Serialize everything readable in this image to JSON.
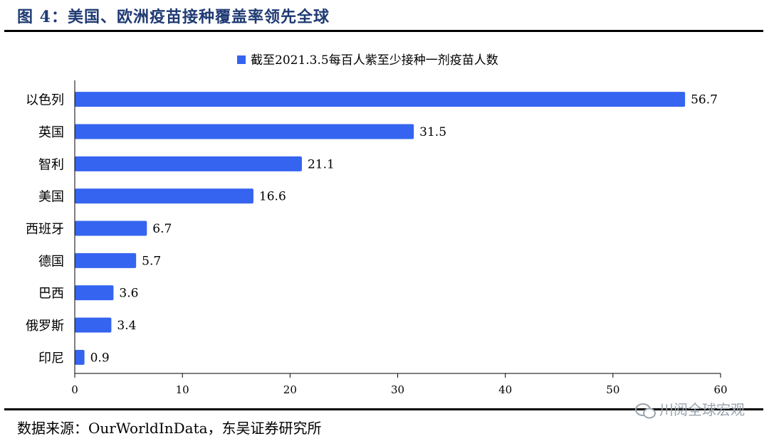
{
  "figure": {
    "title": "图 4：美国、欧洲疫苗接种覆盖率领先全球",
    "source": "数据来源：OurWorldInData，东吴证券研究所",
    "watermark": "川阅全球宏观"
  },
  "chart_data": {
    "type": "bar",
    "orientation": "horizontal",
    "categories": [
      "以色列",
      "英国",
      "智利",
      "美国",
      "西班牙",
      "德国",
      "巴西",
      "俄罗斯",
      "印尼"
    ],
    "series": [
      {
        "name": "截至2021.3.5每百人紫至少接种一剂疫苗人数",
        "values": [
          56.7,
          31.5,
          21.1,
          16.6,
          6.7,
          5.7,
          3.6,
          3.4,
          0.9
        ]
      }
    ],
    "xlim": [
      0,
      60
    ],
    "xticks": [
      "0",
      "10",
      "20",
      "30",
      "40",
      "50",
      "60"
    ],
    "grid": false,
    "legend_position": "top-center",
    "colors": {
      "bar": "#3564f0",
      "axis": "#000000",
      "title": "#1f3a73"
    }
  }
}
